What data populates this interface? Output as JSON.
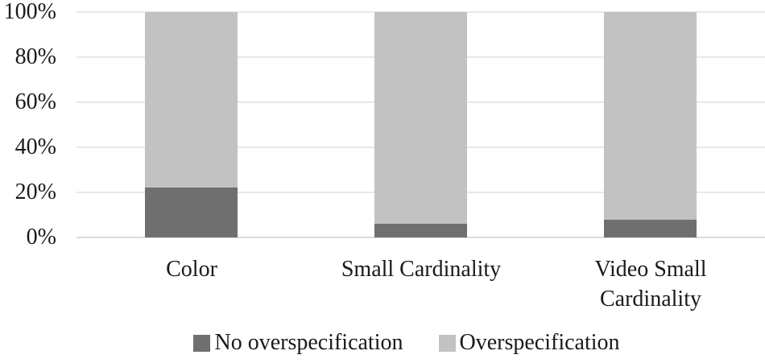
{
  "chart_data": {
    "type": "bar",
    "subtype": "100-percent-stacked-column",
    "categories": [
      "Color",
      "Small Cardinality",
      "Video Small Cardinality"
    ],
    "series": [
      {
        "name": "No overspecification",
        "color": "#6f6f6f",
        "values": [
          22,
          6,
          8
        ]
      },
      {
        "name": "Overspecification",
        "color": "#c2c2c2",
        "values": [
          78,
          94,
          92
        ]
      }
    ],
    "y_axis": {
      "min": 0,
      "max": 100,
      "ticks": [
        {
          "value": 0,
          "label": "0%"
        },
        {
          "value": 20,
          "label": "20%"
        },
        {
          "value": 40,
          "label": "40%"
        },
        {
          "value": 60,
          "label": "60%"
        },
        {
          "value": 80,
          "label": "80%"
        },
        {
          "value": 100,
          "label": "100%"
        }
      ]
    },
    "grid": "horizontal",
    "legend_position": "bottom",
    "colors": {
      "gridline": "#e8e8e8",
      "baseline": "#dcdcdc",
      "text": "#1a1a1a",
      "background": "#ffffff"
    }
  }
}
